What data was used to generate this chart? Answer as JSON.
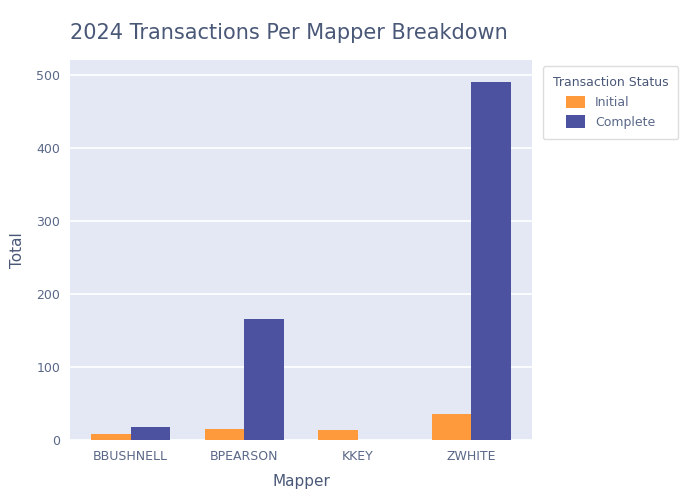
{
  "title": "2024 Transactions Per Mapper Breakdown",
  "xlabel": "Mapper",
  "ylabel": "Total",
  "categories": [
    "BBUSHNELL",
    "BPEARSON",
    "KKEY",
    "ZWHITE"
  ],
  "initial_values": [
    8,
    15,
    14,
    35
  ],
  "complete_values": [
    18,
    165,
    0,
    490
  ],
  "initial_color": "#FF9A3C",
  "complete_color": "#4D52A0",
  "plot_bg_color": "#E4E8F4",
  "fig_bg_color": "#FFFFFF",
  "legend_title": "Transaction Status",
  "legend_labels": [
    "Initial",
    "Complete"
  ],
  "title_color": "#4A5878",
  "axis_label_color": "#4A5878",
  "tick_color": "#5A6888",
  "ylim": [
    0,
    520
  ],
  "yticks": [
    0,
    100,
    200,
    300,
    400,
    500
  ],
  "bar_width": 0.35,
  "title_fontsize": 15,
  "axis_label_fontsize": 11,
  "tick_fontsize": 9
}
